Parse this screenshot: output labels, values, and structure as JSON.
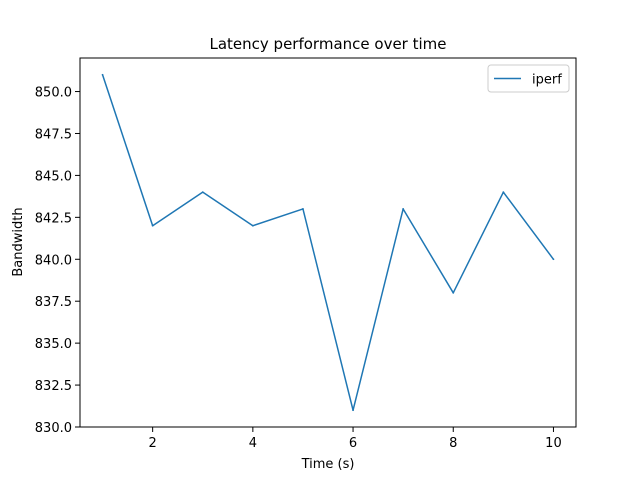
{
  "chart_data": {
    "type": "line",
    "title": "Latency performance over time",
    "xlabel": "Time (s)",
    "ylabel": "Bandwidth",
    "xlim": [
      0.55,
      10.45
    ],
    "ylim": [
      830.0,
      852.0
    ],
    "xticks": [
      2,
      4,
      6,
      8,
      10
    ],
    "xtick_labels": [
      "2",
      "4",
      "6",
      "8",
      "10"
    ],
    "yticks": [
      830.0,
      832.5,
      835.0,
      837.5,
      840.0,
      842.5,
      845.0,
      847.5,
      850.0
    ],
    "ytick_labels": [
      "830.0",
      "832.5",
      "835.0",
      "837.5",
      "840.0",
      "842.5",
      "845.0",
      "847.5",
      "850.0"
    ],
    "grid": false,
    "legend_position": "top-right",
    "series": [
      {
        "name": "iperf",
        "color": "#1f77b4",
        "x": [
          1,
          2,
          3,
          4,
          5,
          6,
          7,
          8,
          9,
          10
        ],
        "y": [
          851,
          842,
          844,
          842,
          843,
          831,
          843,
          838,
          844,
          840
        ]
      }
    ]
  }
}
